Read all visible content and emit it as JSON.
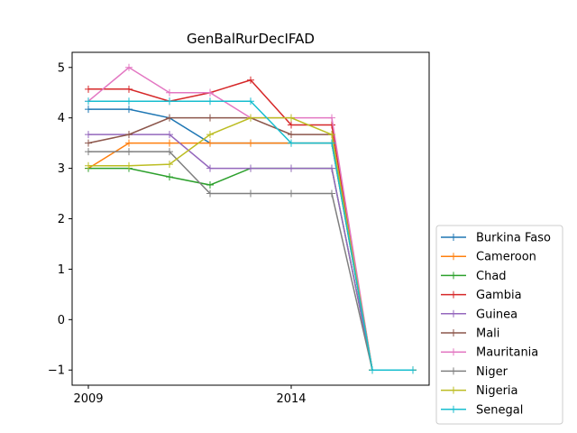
{
  "chart_data": {
    "type": "line",
    "title": "GenBalRurDecIFAD",
    "xlabel": "",
    "ylabel": "",
    "x": [
      2009,
      2010,
      2011,
      2012,
      2013,
      2014,
      2015,
      2016,
      2017
    ],
    "x_ticks": [
      2009,
      2014
    ],
    "y_ticks": [
      -1,
      0,
      1,
      2,
      3,
      4,
      5
    ],
    "xlim": [
      2008.6,
      2017.4
    ],
    "ylim": [
      -1.3,
      5.3
    ],
    "grid": false,
    "legend_position": "lower-right-outside",
    "series": [
      {
        "name": "Burkina Faso",
        "color": "#1f77b4",
        "values": [
          4.17,
          4.17,
          4.0,
          3.5,
          3.5,
          3.5,
          3.5,
          -1,
          -1
        ]
      },
      {
        "name": "Cameroon",
        "color": "#ff7f0e",
        "values": [
          3.0,
          3.5,
          3.5,
          3.5,
          3.5,
          3.5,
          3.5,
          -1,
          -1
        ]
      },
      {
        "name": "Chad",
        "color": "#2ca02c",
        "values": [
          3.0,
          3.0,
          2.83,
          2.67,
          3.0,
          3.0,
          3.0,
          -1,
          -1
        ]
      },
      {
        "name": "Gambia",
        "color": "#d62728",
        "values": [
          4.57,
          4.57,
          4.33,
          4.5,
          4.75,
          3.86,
          3.86,
          -1,
          -1
        ]
      },
      {
        "name": "Guinea",
        "color": "#9467bd",
        "values": [
          3.67,
          3.67,
          3.67,
          3.0,
          3.0,
          3.0,
          3.0,
          -1,
          -1
        ]
      },
      {
        "name": "Mali",
        "color": "#8c564b",
        "values": [
          3.5,
          3.67,
          4.0,
          4.0,
          4.0,
          3.67,
          3.67,
          -1,
          -1
        ]
      },
      {
        "name": "Mauritania",
        "color": "#e377c2",
        "values": [
          4.33,
          5.0,
          4.5,
          4.5,
          4.0,
          4.0,
          4.0,
          -1,
          -1
        ]
      },
      {
        "name": "Niger",
        "color": "#7f7f7f",
        "values": [
          3.33,
          3.33,
          3.33,
          2.5,
          2.5,
          2.5,
          2.5,
          -1,
          -1
        ]
      },
      {
        "name": "Nigeria",
        "color": "#bcbd22",
        "values": [
          3.05,
          3.05,
          3.08,
          3.67,
          4.0,
          4.0,
          3.67,
          -1,
          -1
        ]
      },
      {
        "name": "Senegal",
        "color": "#17becf",
        "values": [
          4.33,
          4.33,
          4.33,
          4.33,
          4.33,
          3.5,
          3.5,
          -1,
          -1
        ]
      }
    ]
  }
}
